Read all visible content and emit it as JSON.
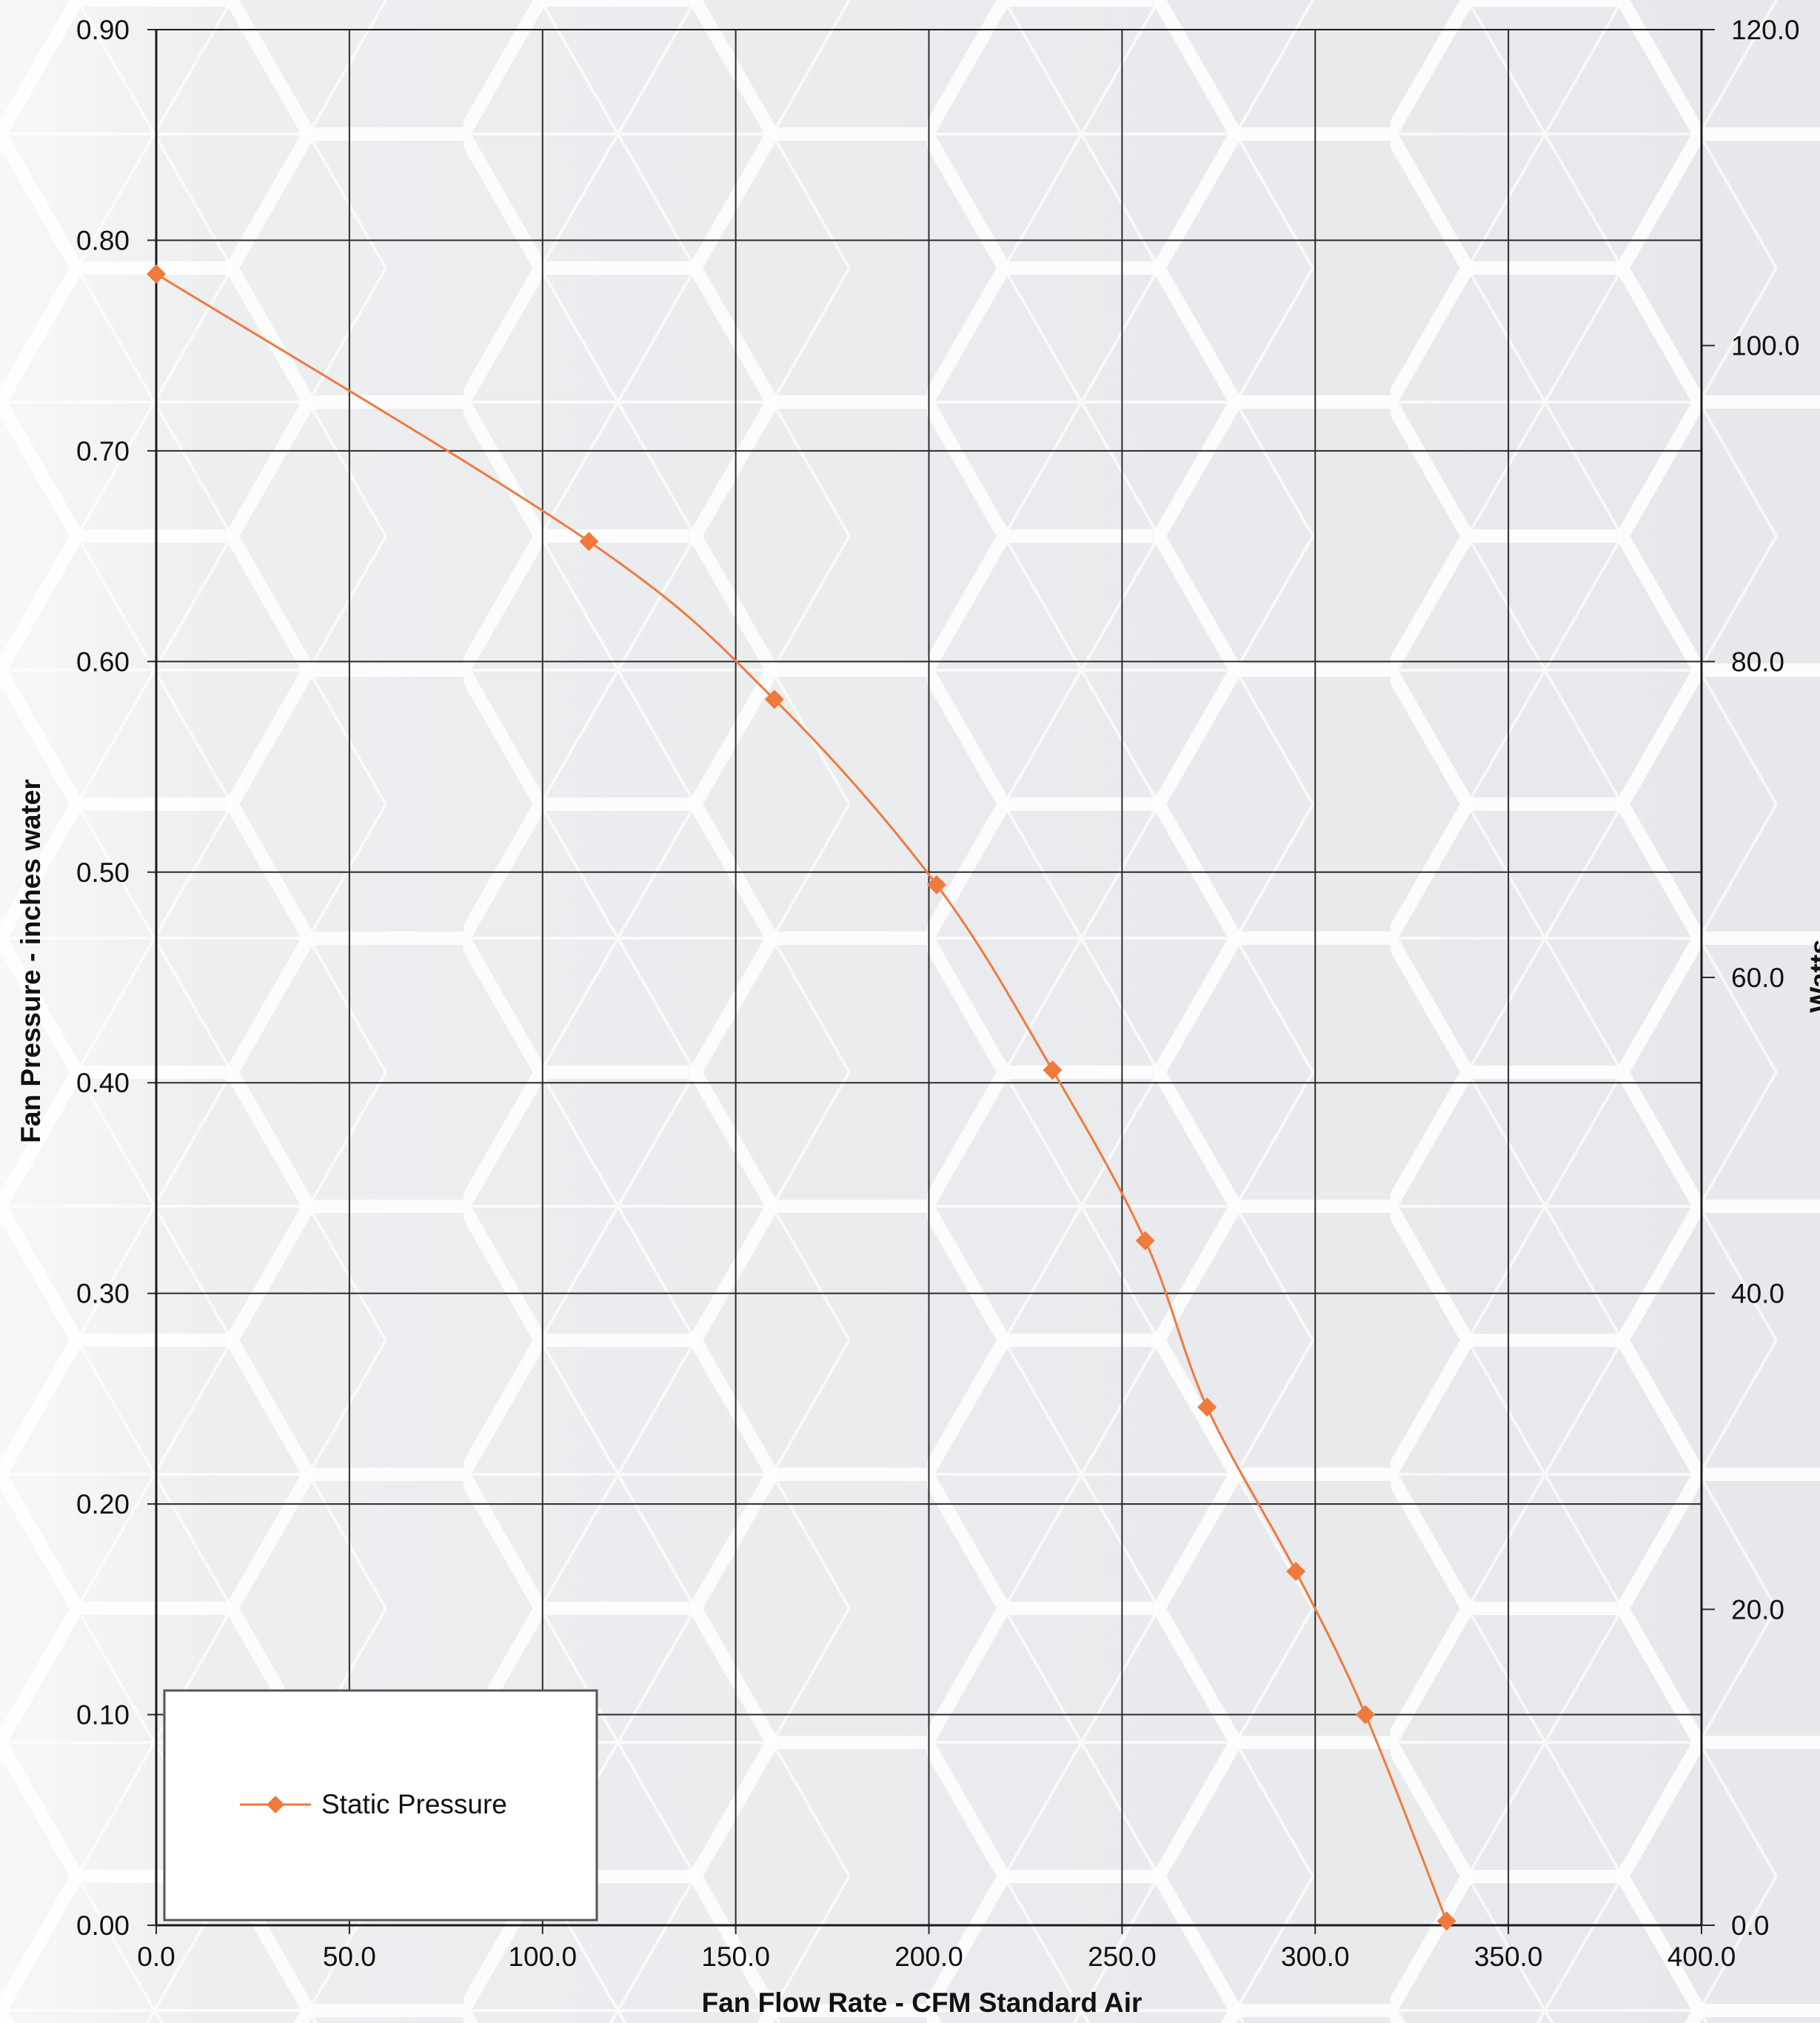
{
  "chart_data": {
    "type": "line",
    "xlabel": "Fan Flow Rate - CFM Standard Air",
    "ylabel": "Fan Pressure - inches water",
    "y2label": "Watts",
    "xlim": [
      0,
      400
    ],
    "ylim": [
      0,
      0.9
    ],
    "y2lim": [
      0,
      120
    ],
    "x_ticks": [
      "0.0",
      "50.0",
      "100.0",
      "150.0",
      "200.0",
      "250.0",
      "300.0",
      "350.0",
      "400.0"
    ],
    "y_ticks": [
      "0.00",
      "0.10",
      "0.20",
      "0.30",
      "0.40",
      "0.50",
      "0.60",
      "0.70",
      "0.80",
      "0.90"
    ],
    "y2_ticks": [
      "0.0",
      "20.0",
      "40.0",
      "60.0",
      "80.0",
      "100.0",
      "120.0"
    ],
    "grid": true,
    "legend_position": "bottom-left",
    "series": [
      {
        "name": "Static Pressure",
        "color": "#f07a3c",
        "marker": "diamond",
        "points": [
          {
            "x": 0.0,
            "y": 0.784
          },
          {
            "x": 112.0,
            "y": 0.657
          },
          {
            "x": 160.0,
            "y": 0.582
          },
          {
            "x": 202.0,
            "y": 0.494
          },
          {
            "x": 232.0,
            "y": 0.406
          },
          {
            "x": 256.0,
            "y": 0.325
          },
          {
            "x": 272.0,
            "y": 0.246
          },
          {
            "x": 295.0,
            "y": 0.168
          },
          {
            "x": 313.0,
            "y": 0.1
          },
          {
            "x": 334.0,
            "y": 0.002
          }
        ]
      }
    ]
  }
}
